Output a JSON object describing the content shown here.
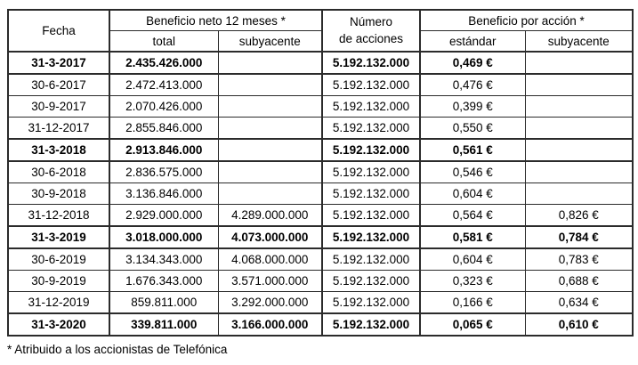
{
  "table": {
    "headers": {
      "fecha": "Fecha",
      "beneficio_neto_group": "Beneficio neto 12 meses *",
      "total": "total",
      "subyacente_neto": "subyacente",
      "numero_line1": "Número",
      "numero_line2": "de acciones",
      "beneficio_accion_group": "Beneficio por acción *",
      "estandar": "estándar",
      "subyacente_accion": "subyacente"
    },
    "bold_rows": [
      0,
      4,
      8,
      12
    ],
    "footnote": "* Atribuido a los accionistas de Telefónica"
  },
  "chart_data": {
    "type": "table",
    "columns": [
      "Fecha",
      "Beneficio neto 12 meses * (total)",
      "Beneficio neto 12 meses * (subyacente)",
      "Número de acciones",
      "Beneficio por acción * (estándar)",
      "Beneficio por acción * (subyacente)"
    ],
    "rows": [
      [
        "31-3-2017",
        "2.435.426.000",
        "",
        "5.192.132.000",
        "0,469 €",
        ""
      ],
      [
        "30-6-2017",
        "2.472.413.000",
        "",
        "5.192.132.000",
        "0,476 €",
        ""
      ],
      [
        "30-9-2017",
        "2.070.426.000",
        "",
        "5.192.132.000",
        "0,399 €",
        ""
      ],
      [
        "31-12-2017",
        "2.855.846.000",
        "",
        "5.192.132.000",
        "0,550 €",
        ""
      ],
      [
        "31-3-2018",
        "2.913.846.000",
        "",
        "5.192.132.000",
        "0,561 €",
        ""
      ],
      [
        "30-6-2018",
        "2.836.575.000",
        "",
        "5.192.132.000",
        "0,546 €",
        ""
      ],
      [
        "30-9-2018",
        "3.136.846.000",
        "",
        "5.192.132.000",
        "0,604 €",
        ""
      ],
      [
        "31-12-2018",
        "2.929.000.000",
        "4.289.000.000",
        "5.192.132.000",
        "0,564 €",
        "0,826 €"
      ],
      [
        "31-3-2019",
        "3.018.000.000",
        "4.073.000.000",
        "5.192.132.000",
        "0,581 €",
        "0,784 €"
      ],
      [
        "30-6-2019",
        "3.134.343.000",
        "4.068.000.000",
        "5.192.132.000",
        "0,604 €",
        "0,783 €"
      ],
      [
        "30-9-2019",
        "1.676.343.000",
        "3.571.000.000",
        "5.192.132.000",
        "0,323 €",
        "0,688 €"
      ],
      [
        "31-12-2019",
        "859.811.000",
        "3.292.000.000",
        "5.192.132.000",
        "0,166 €",
        "0,634 €"
      ],
      [
        "31-3-2020",
        "339.811.000",
        "3.166.000.000",
        "5.192.132.000",
        "0,065 €",
        "0,610 €"
      ]
    ]
  }
}
